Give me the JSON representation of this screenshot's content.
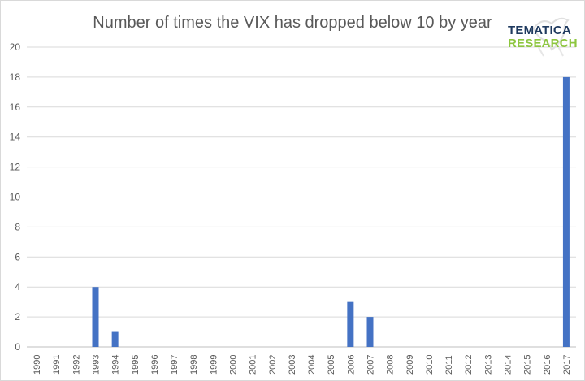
{
  "chart_data": {
    "type": "bar",
    "title": "Number of times the VIX has dropped below 10 by year",
    "xlabel": "",
    "ylabel": "",
    "categories": [
      "1990",
      "1991",
      "1992",
      "1993",
      "1994",
      "1995",
      "1996",
      "1997",
      "1998",
      "1999",
      "2000",
      "2001",
      "2002",
      "2003",
      "2004",
      "2005",
      "2006",
      "2007",
      "2008",
      "2009",
      "2010",
      "2011",
      "2012",
      "2013",
      "2014",
      "2015",
      "2016",
      "2017"
    ],
    "values": [
      0,
      0,
      0,
      4,
      1,
      0,
      0,
      0,
      0,
      0,
      0,
      0,
      0,
      0,
      0,
      0,
      3,
      2,
      0,
      0,
      0,
      0,
      0,
      0,
      0,
      0,
      0,
      18
    ],
    "ylim": [
      0,
      20
    ],
    "yticks": [
      0,
      2,
      4,
      6,
      8,
      10,
      12,
      14,
      16,
      18,
      20
    ],
    "grid": true,
    "bar_color": "#4472c4"
  },
  "logo": {
    "line1": "TEMATICA",
    "line2": "RESEARCH"
  }
}
